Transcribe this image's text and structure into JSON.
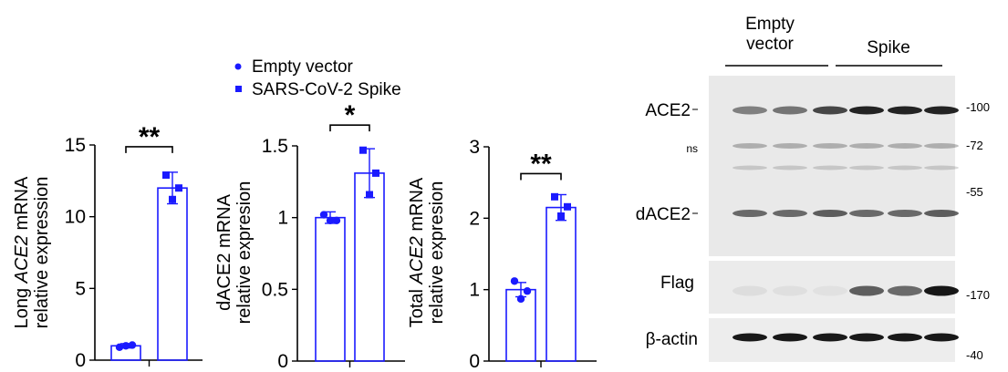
{
  "legend": {
    "items": [
      {
        "label": "Empty vector",
        "marker": "circle"
      },
      {
        "label": "SARS-CoV-2 Spike",
        "marker": "square"
      }
    ]
  },
  "colors": {
    "series": "#1a1aff",
    "axis": "#000000"
  },
  "chart_data": [
    {
      "type": "bar",
      "ylabel": [
        "Long ACE2 mRNA",
        "relative expression"
      ],
      "ylabel_italic": "ACE2",
      "ylim": [
        0,
        15
      ],
      "yticks": [
        "0",
        "5",
        "10",
        "15"
      ],
      "significance": "**",
      "series": [
        {
          "name": "Empty vector",
          "values": [
            1.0
          ],
          "error": 0.15,
          "points": [
            0.9,
            1.05,
            1.0
          ]
        },
        {
          "name": "SARS-CoV-2 Spike",
          "values": [
            12.0
          ],
          "error": 1.1,
          "points": [
            12.9,
            12.0,
            11.2
          ]
        }
      ]
    },
    {
      "type": "bar",
      "ylabel": [
        "dACE2 mRNA",
        "relative expresion"
      ],
      "ylim": [
        0,
        1.5
      ],
      "yticks": [
        "0",
        "0.5",
        "1",
        "1.5"
      ],
      "significance": "*",
      "series": [
        {
          "name": "Empty vector",
          "values": [
            1.0
          ],
          "error": 0.04,
          "points": [
            1.02,
            0.98,
            0.98
          ]
        },
        {
          "name": "SARS-CoV-2 Spike",
          "values": [
            1.31
          ],
          "error": 0.17,
          "points": [
            1.47,
            1.31,
            1.16
          ]
        }
      ]
    },
    {
      "type": "bar",
      "ylabel": [
        "Total ACE2 mRNA",
        "relative expresion"
      ],
      "ylabel_italic": "ACE2",
      "ylim": [
        0,
        3
      ],
      "yticks": [
        "0",
        "1",
        "2",
        "3"
      ],
      "significance": "**",
      "series": [
        {
          "name": "Empty vector",
          "values": [
            1.0
          ],
          "error": 0.1,
          "points": [
            1.12,
            0.98,
            0.87
          ]
        },
        {
          "name": "SARS-CoV-2 Spike",
          "values": [
            2.15
          ],
          "error": 0.18,
          "points": [
            2.3,
            2.16,
            2.03
          ]
        }
      ]
    }
  ],
  "blot": {
    "groups": [
      {
        "label_lines": [
          "Empty",
          "vector"
        ]
      },
      {
        "label_lines": [
          "Spike"
        ]
      }
    ],
    "band_labels": {
      "ace2": "ACE2",
      "ns": "ns",
      "dace2": "dACE2",
      "flag": "Flag",
      "actin": "β-actin"
    },
    "markers": [
      "-100",
      "-72",
      "-55",
      "-170",
      "-40"
    ]
  }
}
